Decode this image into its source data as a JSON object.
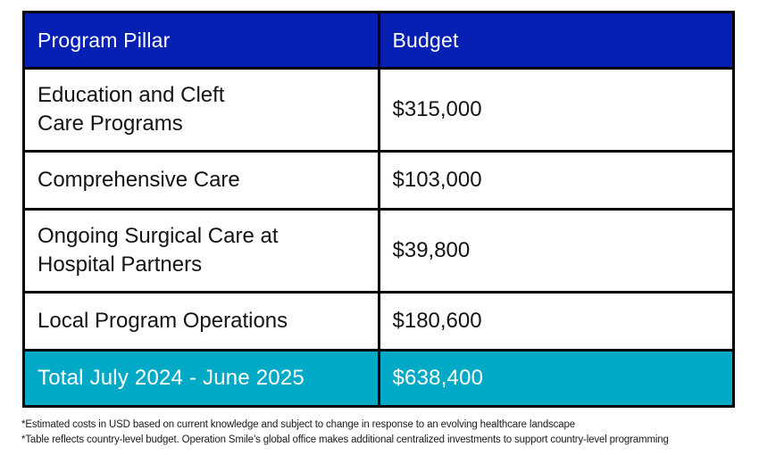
{
  "colors": {
    "header_bg": "#0520b2",
    "header_text": "#ffffff",
    "total_bg": "#00a9c6",
    "total_text": "#ffffff",
    "border": "#000000",
    "body_text": "#141414",
    "background": "#ffffff"
  },
  "table": {
    "columns": [
      "Program Pillar",
      "Budget"
    ],
    "rows": [
      {
        "pillar": [
          "Education and Cleft",
          "Care Programs"
        ],
        "budget": "$315,000"
      },
      {
        "pillar": [
          "Comprehensive Care"
        ],
        "budget": "$103,000"
      },
      {
        "pillar": [
          "Ongoing Surgical Care at",
          "Hospital Partners"
        ],
        "budget": "$39,800"
      },
      {
        "pillar": [
          "Local Program Operations"
        ],
        "budget": "$180,600"
      }
    ],
    "total_row": {
      "label": "Total July 2024 - June 2025",
      "budget": "$638,400"
    }
  },
  "footnotes": [
    "*Estimated costs in USD based on current knowledge and subject to change in response to an evolving healthcare landscape",
    "*Table reflects country-level budget. Operation Smile’s global office makes additional centralized investments to support country-level programming"
  ],
  "chart_data": {
    "type": "table",
    "title": "",
    "columns": [
      "Program Pillar",
      "Budget"
    ],
    "rows": [
      [
        "Education and Cleft Care Programs",
        315000
      ],
      [
        "Comprehensive Care",
        103000
      ],
      [
        "Ongoing Surgical Care at Hospital Partners",
        39800
      ],
      [
        "Local Program Operations",
        180600
      ]
    ],
    "total": {
      "label": "Total July 2024 - June 2025",
      "value": 638400
    },
    "currency": "USD",
    "layout": {
      "header_bg": "#0520b2",
      "total_bg": "#00a9c6",
      "grid": true
    }
  }
}
